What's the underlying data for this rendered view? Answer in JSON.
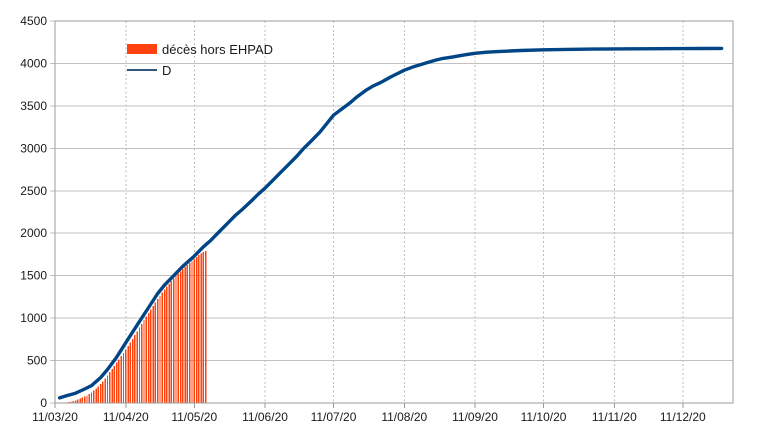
{
  "colors": {
    "bar_series": "#ff420e",
    "line_series": "#004586",
    "legend_line": "#33577b",
    "gridline": "#c2c2c2",
    "dashed_gridline": "#bdbdbd",
    "axis": "#9b9b9b",
    "text": "#1a1a1a",
    "background": "#ffffff"
  },
  "legend": {
    "items": [
      {
        "label": "décès hors EHPAD",
        "swatch": "bar-swatch"
      },
      {
        "label": "D",
        "swatch": "line-swatch"
      }
    ]
  },
  "chart_data": {
    "type": "bar",
    "subtype": "combo-bar-line-timeseries",
    "title": "",
    "xlabel": "",
    "ylabel": "",
    "grid": true,
    "legend_position": "top-left-inside",
    "y_axis": {
      "min": 0,
      "max": 4500,
      "step": 500,
      "tick_labels": [
        "0",
        "500",
        "1000",
        "1500",
        "2000",
        "2500",
        "3000",
        "3500",
        "4000",
        "4500"
      ]
    },
    "x_axis": {
      "start": "2020-03-11",
      "end": "2021-01-02",
      "ticks": [
        {
          "date": "2020-03-11",
          "label": "11/03/20"
        },
        {
          "date": "2020-04-11",
          "label": "11/04/20"
        },
        {
          "date": "2020-05-11",
          "label": "11/05/20"
        },
        {
          "date": "2020-06-11",
          "label": "11/06/20"
        },
        {
          "date": "2020-07-11",
          "label": "11/07/20"
        },
        {
          "date": "2020-08-11",
          "label": "11/08/20"
        },
        {
          "date": "2020-09-11",
          "label": "11/09/20"
        },
        {
          "date": "2020-10-11",
          "label": "11/10/20"
        },
        {
          "date": "2020-11-11",
          "label": "11/11/20"
        },
        {
          "date": "2020-12-11",
          "label": "11/12/20"
        }
      ]
    },
    "series": [
      {
        "name": "décès hors EHPAD",
        "type": "bar",
        "color": "#ff420e",
        "points": [
          [
            "2020-03-14",
            2
          ],
          [
            "2020-03-15",
            4
          ],
          [
            "2020-03-16",
            7
          ],
          [
            "2020-03-17",
            11
          ],
          [
            "2020-03-18",
            16
          ],
          [
            "2020-03-19",
            22
          ],
          [
            "2020-03-20",
            30
          ],
          [
            "2020-03-21",
            40
          ],
          [
            "2020-03-22",
            51
          ],
          [
            "2020-03-23",
            63
          ],
          [
            "2020-03-24",
            76
          ],
          [
            "2020-03-25",
            90
          ],
          [
            "2020-03-26",
            106
          ],
          [
            "2020-03-27",
            125
          ],
          [
            "2020-03-28",
            146
          ],
          [
            "2020-03-29",
            170
          ],
          [
            "2020-03-30",
            196
          ],
          [
            "2020-03-31",
            225
          ],
          [
            "2020-04-01",
            256
          ],
          [
            "2020-04-02",
            290
          ],
          [
            "2020-04-03",
            326
          ],
          [
            "2020-04-04",
            363
          ],
          [
            "2020-04-05",
            400
          ],
          [
            "2020-04-06",
            437
          ],
          [
            "2020-04-07",
            475
          ],
          [
            "2020-04-08",
            513
          ],
          [
            "2020-04-09",
            551
          ],
          [
            "2020-04-10",
            590
          ],
          [
            "2020-04-11",
            630
          ],
          [
            "2020-04-12",
            671
          ],
          [
            "2020-04-13",
            713
          ],
          [
            "2020-04-14",
            756
          ],
          [
            "2020-04-15",
            800
          ],
          [
            "2020-04-16",
            845
          ],
          [
            "2020-04-17",
            889
          ],
          [
            "2020-04-18",
            932
          ],
          [
            "2020-04-19",
            975
          ],
          [
            "2020-04-20",
            1018
          ],
          [
            "2020-04-21",
            1060
          ],
          [
            "2020-04-22",
            1102
          ],
          [
            "2020-04-23",
            1144
          ],
          [
            "2020-04-24",
            1185
          ],
          [
            "2020-04-25",
            1225
          ],
          [
            "2020-04-26",
            1263
          ],
          [
            "2020-04-27",
            1300
          ],
          [
            "2020-04-28",
            1336
          ],
          [
            "2020-04-29",
            1370
          ],
          [
            "2020-04-30",
            1403
          ],
          [
            "2020-05-01",
            1435
          ],
          [
            "2020-05-02",
            1466
          ],
          [
            "2020-05-03",
            1496
          ],
          [
            "2020-05-04",
            1524
          ],
          [
            "2020-05-05",
            1551
          ],
          [
            "2020-05-06",
            1577
          ],
          [
            "2020-05-07",
            1602
          ],
          [
            "2020-05-08",
            1627
          ],
          [
            "2020-05-09",
            1651
          ],
          [
            "2020-05-10",
            1675
          ],
          [
            "2020-05-11",
            1699
          ],
          [
            "2020-05-12",
            1722
          ],
          [
            "2020-05-13",
            1742
          ],
          [
            "2020-05-14",
            1760
          ],
          [
            "2020-05-15",
            1776
          ],
          [
            "2020-05-16",
            1790
          ]
        ]
      },
      {
        "name": "D",
        "type": "line",
        "color": "#004586",
        "points": [
          [
            "2020-03-13",
            60
          ],
          [
            "2020-03-16",
            85
          ],
          [
            "2020-03-20",
            115
          ],
          [
            "2020-03-24",
            165
          ],
          [
            "2020-03-27",
            205
          ],
          [
            "2020-03-31",
            300
          ],
          [
            "2020-04-03",
            395
          ],
          [
            "2020-04-07",
            540
          ],
          [
            "2020-04-11",
            710
          ],
          [
            "2020-04-14",
            835
          ],
          [
            "2020-04-18",
            1000
          ],
          [
            "2020-04-21",
            1125
          ],
          [
            "2020-04-25",
            1290
          ],
          [
            "2020-04-28",
            1390
          ],
          [
            "2020-05-02",
            1500
          ],
          [
            "2020-05-06",
            1610
          ],
          [
            "2020-05-11",
            1730
          ],
          [
            "2020-05-15",
            1840
          ],
          [
            "2020-05-18",
            1910
          ],
          [
            "2020-05-22",
            2020
          ],
          [
            "2020-05-25",
            2100
          ],
          [
            "2020-05-29",
            2210
          ],
          [
            "2020-06-01",
            2280
          ],
          [
            "2020-06-05",
            2380
          ],
          [
            "2020-06-08",
            2460
          ],
          [
            "2020-06-11",
            2530
          ],
          [
            "2020-06-15",
            2640
          ],
          [
            "2020-06-18",
            2720
          ],
          [
            "2020-06-21",
            2800
          ],
          [
            "2020-06-25",
            2910
          ],
          [
            "2020-06-28",
            3000
          ],
          [
            "2020-07-01",
            3080
          ],
          [
            "2020-07-05",
            3190
          ],
          [
            "2020-07-08",
            3290
          ],
          [
            "2020-07-11",
            3390
          ],
          [
            "2020-07-15",
            3470
          ],
          [
            "2020-07-18",
            3530
          ],
          [
            "2020-07-21",
            3600
          ],
          [
            "2020-07-25",
            3680
          ],
          [
            "2020-07-28",
            3730
          ],
          [
            "2020-08-01",
            3780
          ],
          [
            "2020-08-05",
            3840
          ],
          [
            "2020-08-08",
            3880
          ],
          [
            "2020-08-11",
            3920
          ],
          [
            "2020-08-15",
            3960
          ],
          [
            "2020-08-18",
            3985
          ],
          [
            "2020-08-21",
            4010
          ],
          [
            "2020-08-25",
            4040
          ],
          [
            "2020-08-28",
            4060
          ],
          [
            "2020-09-01",
            4075
          ],
          [
            "2020-09-05",
            4095
          ],
          [
            "2020-09-08",
            4108
          ],
          [
            "2020-09-11",
            4120
          ],
          [
            "2020-09-16",
            4132
          ],
          [
            "2020-09-21",
            4140
          ],
          [
            "2020-09-26",
            4147
          ],
          [
            "2020-10-01",
            4153
          ],
          [
            "2020-10-11",
            4161
          ],
          [
            "2020-10-21",
            4166
          ],
          [
            "2020-11-01",
            4169
          ],
          [
            "2020-11-11",
            4171
          ],
          [
            "2020-11-21",
            4173
          ],
          [
            "2020-12-01",
            4174
          ],
          [
            "2020-12-11",
            4175
          ],
          [
            "2020-12-20",
            4176
          ],
          [
            "2020-12-28",
            4177
          ]
        ]
      }
    ]
  }
}
